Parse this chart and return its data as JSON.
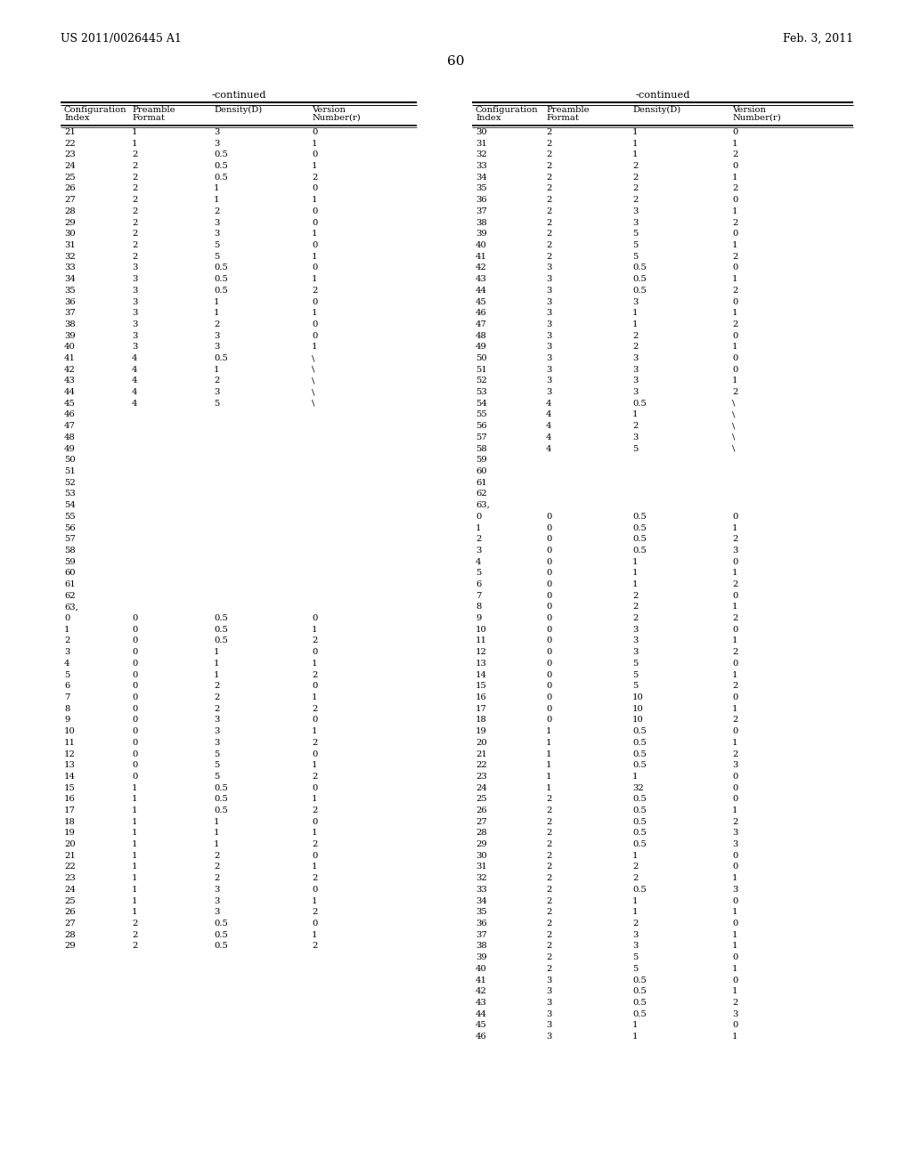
{
  "header_left": "US 2011/0026445 A1",
  "header_right": "Feb. 3, 2011",
  "page_number": "60",
  "col_headers": [
    "Configuration\nIndex",
    "Preamble\nFormat",
    "Density(D)",
    "Version\nNumber(r)"
  ],
  "left_rows": [
    [
      "21",
      "1",
      "3",
      "0"
    ],
    [
      "22",
      "1",
      "3",
      "1"
    ],
    [
      "23",
      "2",
      "0.5",
      "0"
    ],
    [
      "24",
      "2",
      "0.5",
      "1"
    ],
    [
      "25",
      "2",
      "0.5",
      "2"
    ],
    [
      "26",
      "2",
      "1",
      "0"
    ],
    [
      "27",
      "2",
      "1",
      "1"
    ],
    [
      "28",
      "2",
      "2",
      "0"
    ],
    [
      "29",
      "2",
      "3",
      "0"
    ],
    [
      "30",
      "2",
      "3",
      "1"
    ],
    [
      "31",
      "2",
      "5",
      "0"
    ],
    [
      "32",
      "2",
      "5",
      "1"
    ],
    [
      "33",
      "3",
      "0.5",
      "0"
    ],
    [
      "34",
      "3",
      "0.5",
      "1"
    ],
    [
      "35",
      "3",
      "0.5",
      "2"
    ],
    [
      "36",
      "3",
      "1",
      "0"
    ],
    [
      "37",
      "3",
      "1",
      "1"
    ],
    [
      "38",
      "3",
      "2",
      "0"
    ],
    [
      "39",
      "3",
      "3",
      "0"
    ],
    [
      "40",
      "3",
      "3",
      "1"
    ],
    [
      "41",
      "4",
      "0.5",
      "\\"
    ],
    [
      "42",
      "4",
      "1",
      "\\"
    ],
    [
      "43",
      "4",
      "2",
      "\\"
    ],
    [
      "44",
      "4",
      "3",
      "\\"
    ],
    [
      "45",
      "4",
      "5",
      "\\"
    ],
    [
      "46",
      "",
      "",
      ""
    ],
    [
      "47",
      "",
      "",
      ""
    ],
    [
      "48",
      "",
      "",
      ""
    ],
    [
      "49",
      "",
      "",
      ""
    ],
    [
      "50",
      "",
      "",
      ""
    ],
    [
      "51",
      "",
      "",
      ""
    ],
    [
      "52",
      "",
      "",
      ""
    ],
    [
      "53",
      "",
      "",
      ""
    ],
    [
      "54",
      "",
      "",
      ""
    ],
    [
      "55",
      "",
      "",
      ""
    ],
    [
      "56",
      "",
      "",
      ""
    ],
    [
      "57",
      "",
      "",
      ""
    ],
    [
      "58",
      "",
      "",
      ""
    ],
    [
      "59",
      "",
      "",
      ""
    ],
    [
      "60",
      "",
      "",
      ""
    ],
    [
      "61",
      "",
      "",
      ""
    ],
    [
      "62",
      "",
      "",
      ""
    ],
    [
      "63,",
      "",
      "",
      ""
    ],
    [
      "0",
      "0",
      "0.5",
      "0"
    ],
    [
      "1",
      "0",
      "0.5",
      "1"
    ],
    [
      "2",
      "0",
      "0.5",
      "2"
    ],
    [
      "3",
      "0",
      "1",
      "0"
    ],
    [
      "4",
      "0",
      "1",
      "1"
    ],
    [
      "5",
      "0",
      "1",
      "2"
    ],
    [
      "6",
      "0",
      "2",
      "0"
    ],
    [
      "7",
      "0",
      "2",
      "1"
    ],
    [
      "8",
      "0",
      "2",
      "2"
    ],
    [
      "9",
      "0",
      "3",
      "0"
    ],
    [
      "10",
      "0",
      "3",
      "1"
    ],
    [
      "11",
      "0",
      "3",
      "2"
    ],
    [
      "12",
      "0",
      "5",
      "0"
    ],
    [
      "13",
      "0",
      "5",
      "1"
    ],
    [
      "14",
      "0",
      "5",
      "2"
    ],
    [
      "15",
      "1",
      "0.5",
      "0"
    ],
    [
      "16",
      "1",
      "0.5",
      "1"
    ],
    [
      "17",
      "1",
      "0.5",
      "2"
    ],
    [
      "18",
      "1",
      "1",
      "0"
    ],
    [
      "19",
      "1",
      "1",
      "1"
    ],
    [
      "20",
      "1",
      "1",
      "2"
    ],
    [
      "21",
      "1",
      "2",
      "0"
    ],
    [
      "22",
      "1",
      "2",
      "1"
    ],
    [
      "23",
      "1",
      "2",
      "2"
    ],
    [
      "24",
      "1",
      "3",
      "0"
    ],
    [
      "25",
      "1",
      "3",
      "1"
    ],
    [
      "26",
      "1",
      "3",
      "2"
    ],
    [
      "27",
      "2",
      "0.5",
      "0"
    ],
    [
      "28",
      "2",
      "0.5",
      "1"
    ],
    [
      "29",
      "2",
      "0.5",
      "2"
    ]
  ],
  "right_rows": [
    [
      "30",
      "2",
      "1",
      "0"
    ],
    [
      "31",
      "2",
      "1",
      "1"
    ],
    [
      "32",
      "2",
      "1",
      "2"
    ],
    [
      "33",
      "2",
      "2",
      "0"
    ],
    [
      "34",
      "2",
      "2",
      "1"
    ],
    [
      "35",
      "2",
      "2",
      "2"
    ],
    [
      "36",
      "2",
      "2",
      "0"
    ],
    [
      "37",
      "2",
      "3",
      "1"
    ],
    [
      "38",
      "2",
      "3",
      "2"
    ],
    [
      "39",
      "2",
      "5",
      "0"
    ],
    [
      "40",
      "2",
      "5",
      "1"
    ],
    [
      "41",
      "2",
      "5",
      "2"
    ],
    [
      "42",
      "3",
      "0.5",
      "0"
    ],
    [
      "43",
      "3",
      "0.5",
      "1"
    ],
    [
      "44",
      "3",
      "0.5",
      "2"
    ],
    [
      "45",
      "3",
      "3",
      "0"
    ],
    [
      "46",
      "3",
      "1",
      "1"
    ],
    [
      "47",
      "3",
      "1",
      "2"
    ],
    [
      "48",
      "3",
      "2",
      "0"
    ],
    [
      "49",
      "3",
      "2",
      "1"
    ],
    [
      "50",
      "3",
      "3",
      "0"
    ],
    [
      "51",
      "3",
      "3",
      "0"
    ],
    [
      "52",
      "3",
      "3",
      "1"
    ],
    [
      "53",
      "3",
      "3",
      "2"
    ],
    [
      "54",
      "4",
      "0.5",
      "\\"
    ],
    [
      "55",
      "4",
      "1",
      "\\"
    ],
    [
      "56",
      "4",
      "2",
      "\\"
    ],
    [
      "57",
      "4",
      "3",
      "\\"
    ],
    [
      "58",
      "4",
      "5",
      "\\"
    ],
    [
      "59",
      "",
      "",
      ""
    ],
    [
      "60",
      "",
      "",
      ""
    ],
    [
      "61",
      "",
      "",
      ""
    ],
    [
      "62",
      "",
      "",
      ""
    ],
    [
      "63,",
      "",
      "",
      ""
    ],
    [
      "0",
      "0",
      "0.5",
      "0"
    ],
    [
      "1",
      "0",
      "0.5",
      "1"
    ],
    [
      "2",
      "0",
      "0.5",
      "2"
    ],
    [
      "3",
      "0",
      "0.5",
      "3"
    ],
    [
      "4",
      "0",
      "1",
      "0"
    ],
    [
      "5",
      "0",
      "1",
      "1"
    ],
    [
      "6",
      "0",
      "1",
      "2"
    ],
    [
      "7",
      "0",
      "2",
      "0"
    ],
    [
      "8",
      "0",
      "2",
      "1"
    ],
    [
      "9",
      "0",
      "2",
      "2"
    ],
    [
      "10",
      "0",
      "3",
      "0"
    ],
    [
      "11",
      "0",
      "3",
      "1"
    ],
    [
      "12",
      "0",
      "3",
      "2"
    ],
    [
      "13",
      "0",
      "5",
      "0"
    ],
    [
      "14",
      "0",
      "5",
      "1"
    ],
    [
      "15",
      "0",
      "5",
      "2"
    ],
    [
      "16",
      "0",
      "10",
      "0"
    ],
    [
      "17",
      "0",
      "10",
      "1"
    ],
    [
      "18",
      "0",
      "10",
      "2"
    ],
    [
      "19",
      "1",
      "0.5",
      "0"
    ],
    [
      "20",
      "1",
      "0.5",
      "1"
    ],
    [
      "21",
      "1",
      "0.5",
      "2"
    ],
    [
      "22",
      "1",
      "0.5",
      "3"
    ],
    [
      "23",
      "1",
      "1",
      "0"
    ],
    [
      "24",
      "1",
      "32",
      "0"
    ],
    [
      "25",
      "2",
      "0.5",
      "0"
    ],
    [
      "26",
      "2",
      "0.5",
      "1"
    ],
    [
      "27",
      "2",
      "0.5",
      "2"
    ],
    [
      "28",
      "2",
      "0.5",
      "3"
    ],
    [
      "29",
      "2",
      "0.5",
      "3"
    ],
    [
      "30",
      "2",
      "1",
      "0"
    ],
    [
      "31",
      "2",
      "2",
      "0"
    ],
    [
      "32",
      "2",
      "2",
      "1"
    ],
    [
      "33",
      "2",
      "0.5",
      "3"
    ],
    [
      "34",
      "2",
      "1",
      "0"
    ],
    [
      "35",
      "2",
      "1",
      "1"
    ],
    [
      "36",
      "2",
      "2",
      "0"
    ],
    [
      "37",
      "2",
      "3",
      "1"
    ],
    [
      "38",
      "2",
      "3",
      "1"
    ],
    [
      "39",
      "2",
      "5",
      "0"
    ],
    [
      "40",
      "2",
      "5",
      "1"
    ],
    [
      "41",
      "3",
      "0.5",
      "0"
    ],
    [
      "42",
      "3",
      "0.5",
      "1"
    ],
    [
      "43",
      "3",
      "0.5",
      "2"
    ],
    [
      "44",
      "3",
      "0.5",
      "3"
    ],
    [
      "45",
      "3",
      "1",
      "0"
    ],
    [
      "46",
      "3",
      "1",
      "1"
    ]
  ]
}
